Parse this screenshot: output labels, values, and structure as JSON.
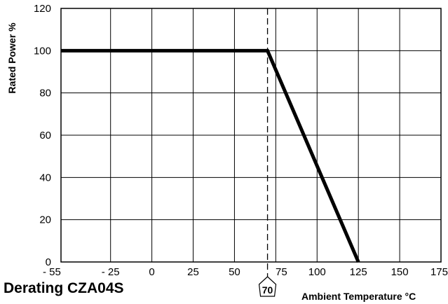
{
  "chart_data": {
    "type": "line",
    "title": "Derating CZA04S",
    "xlabel": "Ambient Temperature °C",
    "ylabel": "Rated Power %",
    "xlim": [
      -55,
      175
    ],
    "ylim": [
      0,
      120
    ],
    "x_ticks": [
      -55,
      -25,
      0,
      25,
      50,
      75,
      100,
      125,
      150,
      175
    ],
    "x_tick_labels": [
      "- 55",
      "- 25",
      "0",
      "25",
      "50",
      "75",
      "100",
      "125",
      "150",
      "175"
    ],
    "y_ticks": [
      0,
      20,
      40,
      60,
      80,
      100,
      120
    ],
    "y_tick_labels": [
      "0",
      "20",
      "40",
      "60",
      "80",
      "100",
      "120"
    ],
    "grid": true,
    "series": [
      {
        "values_x": [
          -55,
          70,
          125
        ],
        "values_y": [
          100,
          100,
          0
        ]
      }
    ],
    "reference_line": {
      "x": 70,
      "label": "70",
      "style": "dashed"
    },
    "colors": {
      "line": "#000000",
      "grid": "#000000",
      "background": "#ffffff"
    }
  }
}
